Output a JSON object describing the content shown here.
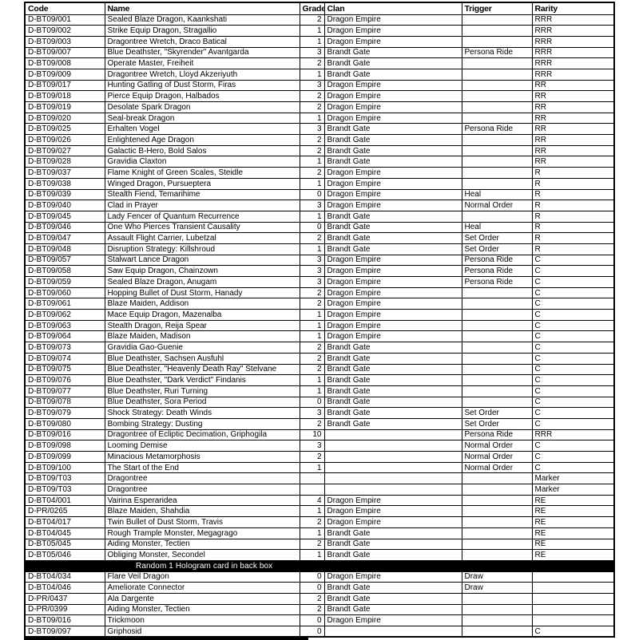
{
  "table": {
    "columns": [
      "Code",
      "Name",
      "Grade",
      "Clan",
      "Trigger",
      "Rarity"
    ],
    "column_keys": [
      "code",
      "name",
      "grade",
      "clan",
      "trigger",
      "rarity"
    ],
    "rows": [
      {
        "type": "card",
        "cells": [
          "D-BT09/001",
          "Sealed Blaze Dragon, Kaankshati",
          "2",
          "Dragon Empire",
          "",
          "RRR"
        ]
      },
      {
        "type": "card",
        "cells": [
          "D-BT09/002",
          "Strike Equip Dragon, Stragallio",
          "1",
          "Dragon Empire",
          "",
          "RRR"
        ]
      },
      {
        "type": "card",
        "cells": [
          "D-BT09/003",
          "Dragontree Wretch, Draco Batical",
          "1",
          "Dragon Empire",
          "",
          "RRR"
        ]
      },
      {
        "type": "card",
        "cells": [
          "D-BT09/007",
          "Blue Deathster, \"Skyrender\" Avantgarda",
          "3",
          "Brandt Gate",
          "Persona Ride",
          "RRR"
        ]
      },
      {
        "type": "card",
        "cells": [
          "D-BT09/008",
          "Operate Master, Freiheit",
          "2",
          "Brandt Gate",
          "",
          "RRR"
        ]
      },
      {
        "type": "card",
        "cells": [
          "D-BT09/009",
          "Dragontree Wretch, Lloyd Akzeriyuth",
          "1",
          "Brandt Gate",
          "",
          "RRR"
        ]
      },
      {
        "type": "card",
        "cells": [
          "D-BT09/017",
          "Hunting Gatling of Dust Storm, Firas",
          "3",
          "Dragon Empire",
          "",
          "RR"
        ]
      },
      {
        "type": "card",
        "cells": [
          "D-BT09/018",
          "Pierce Equip Dragon, Halbados",
          "2",
          "Dragon Empire",
          "",
          "RR"
        ]
      },
      {
        "type": "card",
        "cells": [
          "D-BT09/019",
          "Desolate Spark Dragon",
          "2",
          "Dragon Empire",
          "",
          "RR"
        ]
      },
      {
        "type": "card",
        "cells": [
          "D-BT09/020",
          "Seal-break Dragon",
          "1",
          "Dragon Empire",
          "",
          "RR"
        ]
      },
      {
        "type": "card",
        "cells": [
          "D-BT09/025",
          "Erhalten Vogel",
          "3",
          "Brandt Gate",
          "Persona Ride",
          "RR"
        ]
      },
      {
        "type": "card",
        "cells": [
          "D-BT09/026",
          "Enlightened Age Dragon",
          "2",
          "Brandt Gate",
          "",
          "RR"
        ]
      },
      {
        "type": "card",
        "cells": [
          "D-BT09/027",
          "Galactic B-Hero, Bold Salos",
          "2",
          "Brandt Gate",
          "",
          "RR"
        ]
      },
      {
        "type": "card",
        "cells": [
          "D-BT09/028",
          "Gravidia Claxton",
          "1",
          "Brandt Gate",
          "",
          "RR"
        ]
      },
      {
        "type": "card",
        "cells": [
          "D-BT09/037",
          "Flame Knight of Green Scales, Steidle",
          "2",
          "Dragon Empire",
          "",
          "R"
        ]
      },
      {
        "type": "card",
        "cells": [
          "D-BT09/038",
          "Winged Dragon, Pursueptera",
          "1",
          "Dragon Empire",
          "",
          "R"
        ]
      },
      {
        "type": "card",
        "cells": [
          "D-BT09/039",
          "Stealth Fiend, Temarihime",
          "0",
          "Dragon Empire",
          "Heal",
          "R"
        ]
      },
      {
        "type": "card",
        "cells": [
          "D-BT09/040",
          "Clad in Prayer",
          "3",
          "Dragon Empire",
          "Normal Order",
          "R"
        ]
      },
      {
        "type": "card",
        "cells": [
          "D-BT09/045",
          "Lady Fencer of Quantum Recurrence",
          "1",
          "Brandt Gate",
          "",
          "R"
        ]
      },
      {
        "type": "card",
        "cells": [
          "D-BT09/046",
          "One Who Pierces Transient Causality",
          "0",
          "Brandt Gate",
          "Heal",
          "R"
        ]
      },
      {
        "type": "card",
        "cells": [
          "D-BT09/047",
          "Assault Flight Carrier, Lubetzal",
          "2",
          "Brandt Gate",
          "Set Order",
          "R"
        ]
      },
      {
        "type": "card",
        "cells": [
          "D-BT09/048",
          "Disruption Strategy: Killshroud",
          "1",
          "Brandt Gate",
          "Set Order",
          "R"
        ]
      },
      {
        "type": "card",
        "cells": [
          "D-BT09/057",
          "Stalwart Lance Dragon",
          "3",
          "Dragon Empire",
          "Persona Ride",
          "C"
        ]
      },
      {
        "type": "card",
        "cells": [
          "D-BT09/058",
          "Saw Equip Dragon, Chainzown",
          "3",
          "Dragon Empire",
          "Persona Ride",
          "C"
        ]
      },
      {
        "type": "card",
        "cells": [
          "D-BT09/059",
          "Sealed Blaze Dragon, Anugam",
          "3",
          "Dragon Empire",
          "Persona Ride",
          "C"
        ]
      },
      {
        "type": "card",
        "cells": [
          "D-BT09/060",
          "Hopping Bullet of Dust Storm, Hanady",
          "2",
          "Dragon Empire",
          "",
          "C"
        ]
      },
      {
        "type": "card",
        "cells": [
          "D-BT09/061",
          "Blaze Maiden, Addison",
          "2",
          "Dragon Empire",
          "",
          "C"
        ]
      },
      {
        "type": "card",
        "cells": [
          "D-BT09/062",
          "Mace Equip Dragon, Mazenalba",
          "1",
          "Dragon Empire",
          "",
          "C"
        ]
      },
      {
        "type": "card",
        "cells": [
          "D-BT09/063",
          "Stealth Dragon, Reija Spear",
          "1",
          "Dragon Empire",
          "",
          "C"
        ]
      },
      {
        "type": "card",
        "cells": [
          "D-BT09/064",
          "Blaze Maiden, Madison",
          "1",
          "Dragon Empire",
          "",
          "C"
        ]
      },
      {
        "type": "card",
        "cells": [
          "D-BT09/073",
          "Gravidia Gao-Guenie",
          "2",
          "Brandt Gate",
          "",
          "C"
        ]
      },
      {
        "type": "card",
        "cells": [
          "D-BT09/074",
          "Blue Deathster, Sachsen Ausfuhl",
          "2",
          "Brandt Gate",
          "",
          "C"
        ]
      },
      {
        "type": "card",
        "cells": [
          "D-BT09/075",
          "Blue Deathster, \"Heavenly Death Ray\" Stelvane",
          "2",
          "Brandt Gate",
          "",
          "C"
        ]
      },
      {
        "type": "card",
        "cells": [
          "D-BT09/076",
          "Blue Deathster, \"Dark Verdict\" Findanis",
          "1",
          "Brandt Gate",
          "",
          "C"
        ]
      },
      {
        "type": "card",
        "cells": [
          "D-BT09/077",
          "Blue Deathster, Ruri Turning",
          "1",
          "Brandt Gate",
          "",
          "C"
        ]
      },
      {
        "type": "card",
        "cells": [
          "D-BT09/078",
          "Blue Deathster, Sora Period",
          "0",
          "Brandt Gate",
          "",
          "C"
        ]
      },
      {
        "type": "card",
        "cells": [
          "D-BT09/079",
          "Shock Strategy: Death Winds",
          "3",
          "Brandt Gate",
          "Set Order",
          "C"
        ]
      },
      {
        "type": "card",
        "cells": [
          "D-BT09/080",
          "Bombing Strategy: Dusting",
          "2",
          "Brandt Gate",
          "Set Order",
          "C"
        ]
      },
      {
        "type": "card",
        "cells": [
          "D-BT09/016",
          "Dragontree of Ecliptic Decimation, Griphogila",
          "10",
          "",
          "Persona Ride",
          "RRR"
        ]
      },
      {
        "type": "card",
        "cells": [
          "D-BT09/098",
          "Looming Demise",
          "3",
          "",
          "Normal Order",
          "C"
        ]
      },
      {
        "type": "card",
        "cells": [
          "D-BT09/099",
          "Minacious Metamorphosis",
          "2",
          "",
          "Normal Order",
          "C"
        ]
      },
      {
        "type": "card",
        "cells": [
          "D-BT09/100",
          "The Start of the End",
          "1",
          "",
          "Normal Order",
          "C"
        ]
      },
      {
        "type": "card",
        "cells": [
          "D-BT09/T03",
          "Dragontree",
          "",
          "",
          "",
          "Marker"
        ]
      },
      {
        "type": "card",
        "cells": [
          "D-BT09/T03",
          "Dragontree",
          "",
          "",
          "",
          "Marker"
        ]
      },
      {
        "type": "card",
        "cells": [
          "D-BT04/001",
          "Vairina Esperaridea",
          "4",
          "Dragon Empire",
          "",
          "RE"
        ]
      },
      {
        "type": "card",
        "cells": [
          "D-PR/0265",
          "Blaze Maiden, Shahdia",
          "1",
          "Dragon Empire",
          "",
          "RE"
        ]
      },
      {
        "type": "card",
        "cells": [
          "D-BT04/017",
          "Twin Bullet of Dust Storm, Travis",
          "2",
          "Dragon Empire",
          "",
          "RE"
        ]
      },
      {
        "type": "card",
        "cells": [
          "D-BT04/045",
          "Rough Trample Monster, Megagrago",
          "1",
          "Brandt Gate",
          "",
          "RE"
        ]
      },
      {
        "type": "card",
        "cells": [
          "D-BT05/045",
          "Aiding Monster, Tectien",
          "2",
          "Brandt Gate",
          "",
          "RE"
        ]
      },
      {
        "type": "card",
        "cells": [
          "D-BT05/046",
          "Obliging Monster, Secondel",
          "1",
          "Brandt Gate",
          "",
          "RE"
        ]
      },
      {
        "type": "separator",
        "label": "Random 1 Hologram card in back box"
      },
      {
        "type": "card",
        "cells": [
          "D-BT04/034",
          "Flare Veil Dragon",
          "0",
          "Dragon Empire",
          "Draw",
          ""
        ]
      },
      {
        "type": "card",
        "cells": [
          "D-BT04/046",
          "Ameliorate Connector",
          "0",
          "Brandt Gate",
          "Draw",
          ""
        ]
      },
      {
        "type": "card",
        "cells": [
          "D-PR/0437",
          "Ala Dargente",
          "2",
          "Brandt Gate",
          "",
          ""
        ]
      },
      {
        "type": "card",
        "cells": [
          "D-PR/0399",
          "Aiding Monster, Tectien",
          "2",
          "Brandt Gate",
          "",
          ""
        ]
      },
      {
        "type": "card",
        "cells": [
          "D-BT09/016",
          "Trickmoon",
          "0",
          "Dragon Empire",
          "",
          ""
        ]
      },
      {
        "type": "card",
        "cells": [
          "D-BT09/097",
          "Griphosid",
          "0",
          "",
          "",
          "C"
        ]
      }
    ]
  },
  "colors": {
    "border": "#000000",
    "separator_bg": "#000000",
    "separator_text": "#ffffff",
    "background": "#ffffff"
  }
}
